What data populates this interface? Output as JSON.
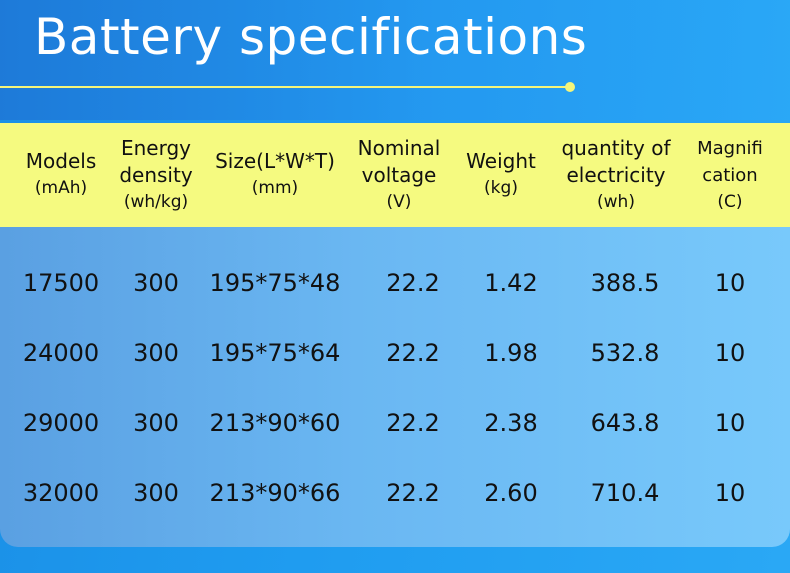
{
  "title": "Battery specifications",
  "colors": {
    "header_bg": "#f5fa80",
    "accent_line": "#f5f57a",
    "title_text": "#ffffff"
  },
  "table": {
    "headers": [
      {
        "main": [
          "Models"
        ],
        "unit": "(mAh)"
      },
      {
        "main": [
          "Energy",
          "density"
        ],
        "unit": "(wh/kg)"
      },
      {
        "main": [
          "Size(L*W*T)"
        ],
        "unit": "(mm)"
      },
      {
        "main": [
          "Nominal",
          "voltage"
        ],
        "unit": "(V)"
      },
      {
        "main": [
          "Weight"
        ],
        "unit": "(kg)"
      },
      {
        "main": [
          "quantity of",
          "electricity"
        ],
        "unit": "(wh)"
      },
      {
        "main": [
          "Magnifi",
          "cation"
        ],
        "unit": "(C)"
      }
    ],
    "rows": [
      [
        "17500",
        "300",
        "195*75*48",
        "22.2",
        "1.42",
        "388.5",
        "10"
      ],
      [
        "24000",
        "300",
        "195*75*64",
        "22.2",
        "1.98",
        "532.8",
        "10"
      ],
      [
        "29000",
        "300",
        "213*90*60",
        "22.2",
        "2.38",
        "643.8",
        "10"
      ],
      [
        "32000",
        "300",
        "213*90*66",
        "22.2",
        "2.60",
        "710.4",
        "10"
      ]
    ]
  }
}
